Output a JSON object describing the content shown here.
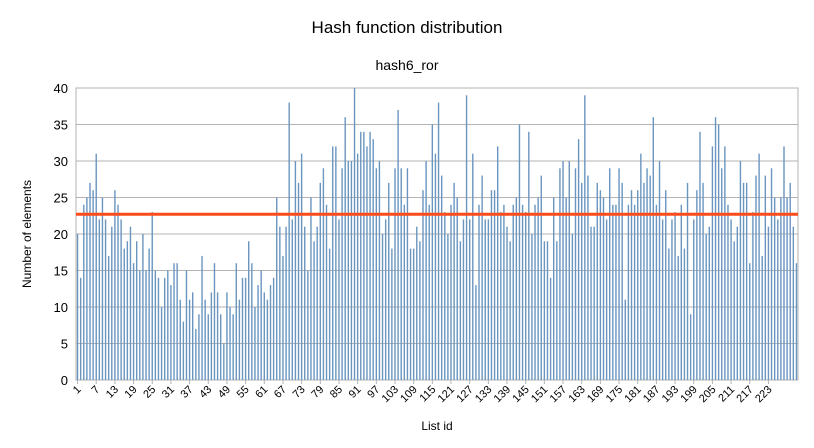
{
  "chart_data": {
    "type": "bar",
    "title": "Hash function distribution",
    "subtitle": "hash6_ror",
    "xlabel": "List id",
    "ylabel": "Number of elements",
    "ylim": [
      0,
      40
    ],
    "y_ticks": [
      0,
      5,
      10,
      15,
      20,
      25,
      30,
      35,
      40
    ],
    "x_tick_labels": [
      "1",
      "7",
      "13",
      "19",
      "25",
      "31",
      "37",
      "43",
      "49",
      "55",
      "61",
      "67",
      "73",
      "79",
      "85",
      "91",
      "97",
      "103",
      "109",
      "115",
      "121",
      "127",
      "133",
      "139",
      "145",
      "151",
      "157",
      "163",
      "169",
      "175",
      "181",
      "187",
      "193",
      "199",
      "205",
      "211",
      "217",
      "223"
    ],
    "grid": "horizontal",
    "legend": "none",
    "bar_color": "#6a95bf",
    "reference_line": {
      "value": 22.7,
      "color": "#ff4a1a"
    },
    "categories_start": 1,
    "values": [
      20,
      14,
      24,
      25,
      27,
      26,
      31,
      22,
      25,
      22,
      17,
      21,
      26,
      24,
      22,
      18,
      19,
      21,
      16,
      19,
      15,
      20,
      15,
      18,
      23,
      15,
      14,
      10,
      14,
      15,
      13,
      16,
      16,
      11,
      8,
      15,
      11,
      12,
      7,
      9,
      17,
      11,
      9,
      12,
      16,
      12,
      9,
      5,
      12,
      10,
      9,
      16,
      11,
      14,
      14,
      19,
      16,
      10,
      13,
      15,
      12,
      11,
      13,
      14,
      25,
      21,
      17,
      21,
      38,
      22,
      30,
      27,
      31,
      21,
      15,
      25,
      19,
      21,
      27,
      29,
      24,
      18,
      32,
      32,
      22,
      29,
      36,
      30,
      30,
      40,
      31,
      34,
      34,
      32,
      34,
      33,
      29,
      30,
      20,
      22,
      27,
      18,
      29,
      37,
      29,
      24,
      29,
      18,
      18,
      21,
      19,
      26,
      30,
      24,
      35,
      31,
      38,
      28,
      23,
      20,
      24,
      27,
      25,
      19,
      22,
      39,
      22,
      31,
      13,
      24,
      28,
      22,
      22,
      26,
      26,
      32,
      23,
      24,
      21,
      19,
      24,
      25,
      35,
      24,
      23,
      34,
      20,
      24,
      25,
      28,
      19,
      19,
      14,
      25,
      19,
      29,
      30,
      25,
      30,
      20,
      29,
      33,
      27,
      39,
      28,
      21,
      21,
      27,
      26,
      25,
      22,
      29,
      24,
      24,
      29,
      27,
      11,
      24,
      26,
      24,
      26,
      31,
      27,
      29,
      28,
      36,
      24,
      30,
      22,
      26,
      18,
      22,
      23,
      17,
      24,
      18,
      27,
      9,
      22,
      26,
      34,
      27,
      20,
      21,
      32,
      36,
      35,
      29,
      32,
      24,
      22,
      19,
      21,
      30,
      27,
      27,
      16,
      23,
      28,
      31,
      17,
      28,
      21,
      29,
      25,
      22,
      25,
      32,
      25,
      27,
      21,
      16
    ]
  }
}
